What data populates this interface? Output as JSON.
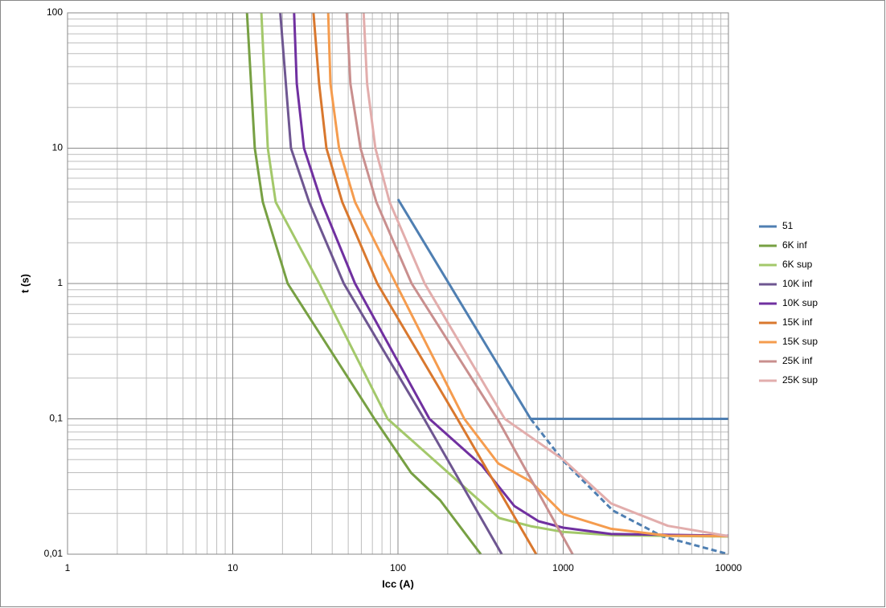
{
  "chart_data": {
    "type": "line",
    "log_x": true,
    "log_y": true,
    "grid": true,
    "minor_grid": true,
    "xlabel": "Icc (A)",
    "ylabel": "t (s)",
    "xlim": [
      1,
      10000
    ],
    "xticks": [
      1,
      10,
      100,
      1000,
      10000
    ],
    "ylim": [
      0.01,
      100
    ],
    "yticks": [
      {
        "value": 0.01,
        "label": "0,01"
      },
      {
        "value": 0.1,
        "label": "0,1"
      },
      1,
      10,
      100
    ],
    "legend": "right",
    "series": [
      {
        "name": "51",
        "color": "#4f7fb2",
        "x": [
          100,
          635,
          10000
        ],
        "values": [
          4.2,
          0.1,
          0.1
        ]
      },
      {
        "color": "#4f7fb2",
        "dashed": true,
        "x": [
          635,
          1000,
          2000,
          4000,
          10000
        ],
        "values": [
          0.1,
          0.049,
          0.021,
          0.0135,
          0.01
        ]
      },
      {
        "name": "6K inf",
        "color": "#77a043",
        "x": [
          12.2,
          13.6,
          15.2,
          21.5,
          72,
          120,
          180,
          317
        ],
        "values": [
          100,
          10,
          4,
          1,
          0.1,
          0.04,
          0.025,
          0.01
        ]
      },
      {
        "name": "6K sup",
        "color": "#a3c86a",
        "x": [
          14.9,
          16.3,
          18.2,
          33.4,
          86.5,
          410,
          635,
          1000,
          2000,
          10000
        ],
        "values": [
          100,
          10,
          4,
          1,
          0.1,
          0.0185,
          0.0161,
          0.0146,
          0.0138,
          0.0135
        ]
      },
      {
        "name": "10K inf",
        "color": "#6e5691",
        "x": [
          19.4,
          22.5,
          29,
          47,
          144,
          425
        ],
        "values": [
          100,
          10,
          4,
          1,
          0.1,
          0.01
        ]
      },
      {
        "name": "10K sup",
        "color": "#7030a0",
        "x": [
          23.5,
          24.4,
          27,
          34.5,
          55,
          155,
          323,
          506,
          710,
          1000,
          1950,
          10000
        ],
        "values": [
          100,
          30,
          10,
          4,
          1,
          0.1,
          0.045,
          0.0227,
          0.0175,
          0.0157,
          0.0141,
          0.0137
        ]
      },
      {
        "name": "15K inf",
        "color": "#d9782e",
        "x": [
          30.8,
          33.3,
          36.9,
          46,
          75,
          229,
          686
        ],
        "values": [
          100,
          30,
          10,
          4,
          1,
          0.1,
          0.01
        ]
      },
      {
        "name": "15K sup",
        "color": "#f59c4e",
        "x": [
          37.8,
          39,
          44,
          55,
          97,
          252,
          405,
          635,
          1000,
          1950,
          4300,
          10000
        ],
        "values": [
          100,
          30,
          10,
          4,
          1,
          0.1,
          0.0468,
          0.0345,
          0.0198,
          0.0154,
          0.0137,
          0.0136
        ]
      },
      {
        "name": "25K inf",
        "color": "#c98f8e",
        "x": [
          49,
          51.5,
          59.3,
          74,
          121,
          400,
          1140
        ],
        "values": [
          100,
          30,
          10,
          4,
          1,
          0.1,
          0.01
        ]
      },
      {
        "name": "25K sup",
        "color": "#e2adac",
        "x": [
          62,
          65,
          73,
          89,
          145,
          443,
          1000,
          1950,
          4300,
          10000
        ],
        "values": [
          100,
          30,
          10,
          4,
          1,
          0.1,
          0.05,
          0.0237,
          0.0162,
          0.0136
        ]
      }
    ]
  }
}
